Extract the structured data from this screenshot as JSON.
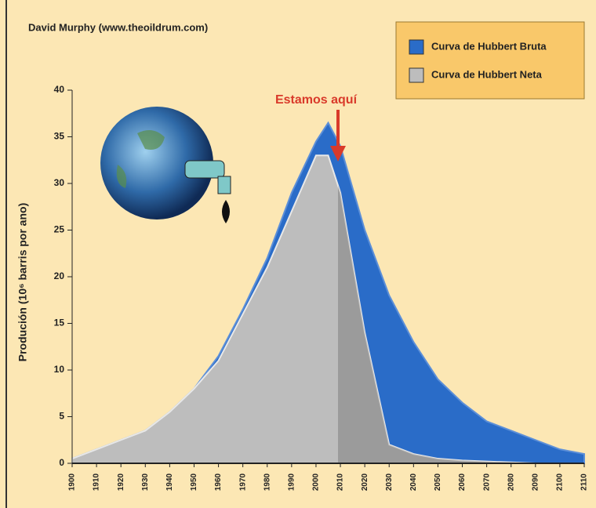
{
  "chart_data": {
    "type": "area",
    "source": "David Murphy (www.theoildrum.com)",
    "annotation": "Estamos aquí",
    "y_label": "Produción (10⁶ barris por ano)",
    "x": [
      1900,
      1910,
      1920,
      1930,
      1940,
      1950,
      1960,
      1970,
      1980,
      1990,
      2000,
      2005,
      2010,
      2020,
      2030,
      2040,
      2050,
      2060,
      2070,
      2080,
      2090,
      2100,
      2110
    ],
    "series": [
      {
        "name": "Curva de Hubbert Bruta",
        "color": "#2a6cc8",
        "values": [
          0.5,
          1.5,
          2.5,
          3.5,
          5.5,
          8,
          11.5,
          16.5,
          22,
          29,
          34.5,
          36.5,
          34,
          25,
          18,
          13,
          9,
          6.5,
          4.5,
          3.5,
          2.5,
          1.5,
          1
        ]
      },
      {
        "name": "Curva de Hubbert Neta",
        "color": "#bdbdbd",
        "values": [
          0.5,
          1.5,
          2.5,
          3.5,
          5.5,
          8,
          11,
          16,
          21,
          27,
          33,
          33,
          29,
          14,
          2,
          1,
          0.5,
          0.3,
          0.2,
          0.1,
          0,
          0,
          0
        ]
      }
    ],
    "xlim": [
      1900,
      2110
    ],
    "xticks": [
      1900,
      1910,
      1920,
      1930,
      1940,
      1950,
      1960,
      1970,
      1980,
      1990,
      2000,
      2010,
      2020,
      2030,
      2040,
      2050,
      2060,
      2070,
      2080,
      2090,
      2100,
      2110
    ],
    "ylim": [
      0,
      40
    ],
    "yticks": [
      0,
      5,
      10,
      15,
      20,
      25,
      30,
      35,
      40
    ],
    "legend": "top-right"
  }
}
